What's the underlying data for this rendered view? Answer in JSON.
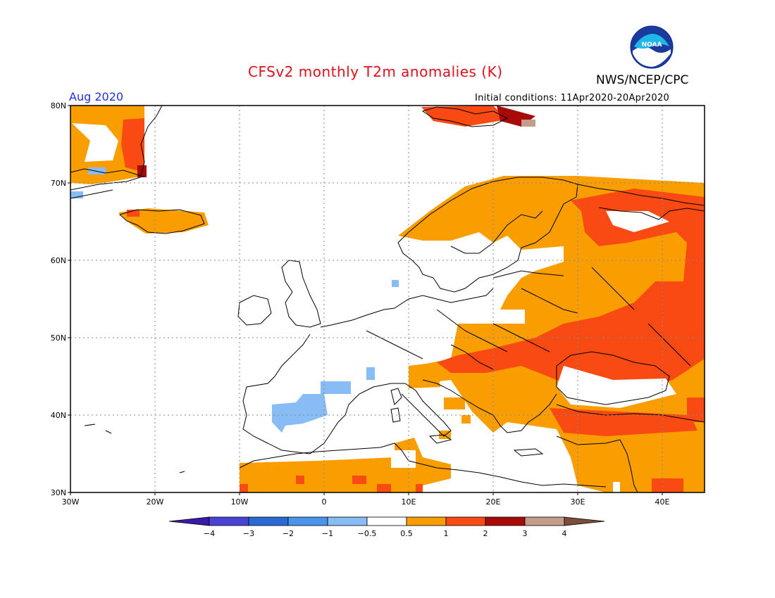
{
  "title": "CFSv2 monthly T2m anomalies (K)",
  "agency": "NWS/NCEP/CPC",
  "logo_text": "NOAA",
  "period": "Aug 2020",
  "initial_conditions": "Initial conditions: 11Apr2020-20Apr2020",
  "lat_labels": [
    "80N",
    "70N",
    "60N",
    "50N",
    "40N",
    "30N"
  ],
  "lon_labels": [
    "30W",
    "20W",
    "10W",
    "0",
    "10E",
    "20E",
    "30E",
    "40E"
  ],
  "colorbar": {
    "colors": [
      "#3a1aa8",
      "#4a42d4",
      "#2a6ad4",
      "#4a94ec",
      "#88bcf4",
      "#ffffff",
      "#fa9e00",
      "#fa4a14",
      "#a80a0a",
      "#c49c8c",
      "#7c4c3c"
    ],
    "ticks": [
      "-4",
      "-3",
      "-2",
      "-1",
      "-0.5",
      "0.5",
      "1",
      "2",
      "3",
      "4"
    ]
  }
}
